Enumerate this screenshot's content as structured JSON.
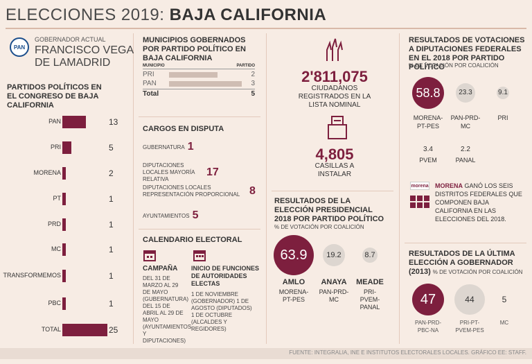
{
  "header": {
    "title_light": "ELECCIONES 2019:",
    "title_bold": "BAJA CALIFORNIA"
  },
  "governor": {
    "logo": "PAN",
    "label": "GOBERNADOR ACTUAL",
    "name_line1": "FRANCISCO VEGA",
    "name_line2": "DE LAMADRID"
  },
  "congress": {
    "title": "PARTIDOS POLÍTICOS EN EL CONGRESO DE BAJA CALIFORNIA",
    "rows": [
      {
        "party": "PAN",
        "value": 13,
        "display": "13"
      },
      {
        "party": "PRI",
        "value": 5,
        "display": "5"
      },
      {
        "party": "MORENA",
        "value": 2,
        "display": "2"
      },
      {
        "party": "PT",
        "value": 1,
        "display": "1"
      },
      {
        "party": "PRD",
        "value": 1,
        "display": "1"
      },
      {
        "party": "MC",
        "value": 1,
        "display": "1"
      },
      {
        "party": "TRANSFORMEMOS",
        "value": 1,
        "display": "1"
      },
      {
        "party": "PBC",
        "value": 1,
        "display": "1"
      },
      {
        "party": "TOTAL",
        "value": 25,
        "display": "25"
      }
    ]
  },
  "municipios": {
    "title": "MUNICIPIOS GOBERNADOS POR PARTIDO POLÍTICO EN BAJA CALIFORNIA",
    "col1": "MUNICIPIO",
    "col2": "PARTIDO",
    "rows": [
      {
        "party": "PRI",
        "count": "2"
      },
      {
        "party": "PAN",
        "count": "3"
      }
    ],
    "total_label": "Total",
    "total_value": "5"
  },
  "cargos": {
    "title": "CARGOS EN DISPUTA",
    "items": [
      {
        "label": "GUBERNATURA",
        "value": "1"
      },
      {
        "label": "DIPUTACIONES LOCALES MAYORÍA RELATIVA",
        "value": "17"
      },
      {
        "label": "DIPUTACIONES LOCALES REPRESENTACIÓN PROPORCIONAL",
        "value": "8"
      },
      {
        "label": "AYUNTAMIENTOS",
        "value": "5"
      }
    ]
  },
  "calendario": {
    "title": "CALENDARIO ELECTORAL",
    "campana_title": "CAMPAÑA",
    "campana_text": "DEL 31 DE MARZO AL 29 DE MAYO (GUBERNATURA) DEL 15 DE ABRIL AL 29 DE MAYO (AYUNTAMIENTOS Y DIPUTACIONES)",
    "inicio_title": "INICIO DE FUNCIONES DE AUTORIDADES ELECTAS",
    "inicio_text": "1 DE NOVIEMBRE (GOBERNADOR) 1 DE AGOSTO (DIPUTADOS) 1 DE OCTUBRE (ALCALDES Y REGIDORES)"
  },
  "registro": {
    "citizens": "2'811,075",
    "citizens_label": "CIUDADANOS REGISTRADOS EN LA LISTA NOMINAL",
    "casillas": "4,805",
    "casillas_label": "CASILLAS A INSTALAR"
  },
  "presidencial": {
    "title": "RESULTADOS DE LA ELECCIÓN PRESIDENCIAL 2018 POR PARTIDO POLÍTICO",
    "subtitle": "% DE VOTACIÓN POR COALICIÓN",
    "results": [
      {
        "value": 63.9,
        "display": "63.9",
        "name": "AMLO",
        "coalition": "MORENA-PT-PES"
      },
      {
        "value": 19.2,
        "display": "19.2",
        "name": "ANAYA",
        "coalition": "PAN-PRD-MC"
      },
      {
        "value": 8.7,
        "display": "8.7",
        "name": "MEADE",
        "coalition": "PRI-PVEM-PANAL"
      }
    ]
  },
  "diputaciones": {
    "title": "RESULTADOS DE VOTACIONES A DIPUTACIONES FEDERALES EN EL 2018 POR PARTIDO POLÍTICO",
    "subtitle": "% DE VOTACIÓN POR COALICIÓN",
    "results": [
      {
        "value": 58.8,
        "display": "58.8",
        "coalition": "MORENA-PT-PES"
      },
      {
        "value": 23.3,
        "display": "23.3",
        "coalition": "PAN-PRD-MC"
      },
      {
        "value": 9.1,
        "display": "9.1",
        "coalition": "PRI"
      },
      {
        "value": 3.4,
        "display": "3.4",
        "coalition": "PVEM"
      },
      {
        "value": 2.2,
        "display": "2.2",
        "coalition": "PANAL"
      }
    ],
    "morena_logo": "morena",
    "note_bold": "MORENA",
    "note": "GANÓ LOS SEIS DISTRITOS FEDERALES QUE COMPONEN BAJA CALIFORNIA EN LAS ELECCIONES DEL 2018."
  },
  "gobernador": {
    "title": "RESULTADOS DE LA ÚLTIMA ELECCIÓN A GOBERNADOR",
    "year": "(2013)",
    "subtitle": "% DE VOTACIÓN POR COALICIÓN",
    "results": [
      {
        "value": 47,
        "display": "47",
        "coalition": "PAN-PRD-PBC-NA"
      },
      {
        "value": 44,
        "display": "44",
        "coalition": "PRI-PT-PVEM-PES"
      },
      {
        "value": 5,
        "display": "5",
        "coalition": "MC"
      }
    ]
  },
  "footer": {
    "source": "FUENTE: INTEGRALIA, INE E INSTITUTOS ELECTORALES LOCALES. GRÁFICO EE: STAFF."
  },
  "colors": {
    "accent": "#7d1f3e",
    "background": "#f7ece4",
    "grey": "#ddd6d0"
  }
}
